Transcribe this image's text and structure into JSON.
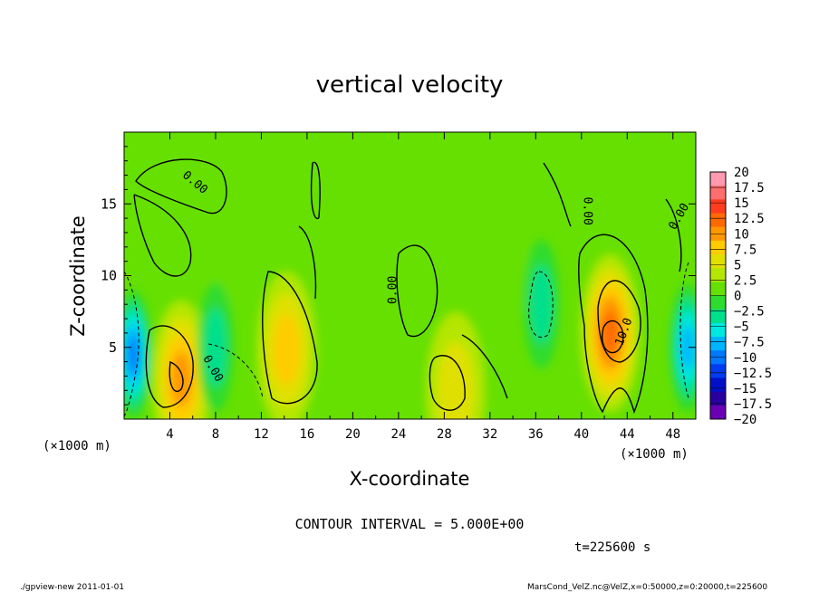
{
  "chart_data": {
    "type": "heatmap",
    "title": "vertical velocity",
    "xlabel": "X-coordinate",
    "ylabel": "Z-coordinate",
    "x_unit_label": "(×1000 m)",
    "y_unit_label": "(×1000 m)",
    "xlim": [
      0,
      50
    ],
    "ylim": [
      0,
      20
    ],
    "x_ticks": [
      4,
      8,
      12,
      16,
      20,
      24,
      28,
      32,
      36,
      40,
      44,
      48
    ],
    "y_ticks": [
      5,
      10,
      15
    ],
    "colorbar": {
      "levels": [
        "20",
        "17.5",
        "15",
        "12.5",
        "10",
        "7.5",
        "5",
        "2.5",
        "0",
        "−2.5",
        "−5",
        "−7.5",
        "−10",
        "−12.5",
        "−15",
        "−17.5",
        "−20"
      ],
      "colors": [
        "#ff9ab0",
        "#ff6e6e",
        "#ff3c1e",
        "#ff6a00",
        "#ff9800",
        "#ffcc00",
        "#e0e000",
        "#b4e600",
        "#66e000",
        "#2edc2e",
        "#00e08c",
        "#00e8e0",
        "#00b4ff",
        "#0078ff",
        "#003cf0",
        "#0010c8",
        "#2800a0",
        "#6a00b4"
      ]
    },
    "features": [
      {
        "kind": "updraft",
        "x": 42.5,
        "z": 6.0,
        "peak": 12.5
      },
      {
        "kind": "updraft",
        "x": 5.0,
        "z": 2.8,
        "peak": 10
      },
      {
        "kind": "updraft",
        "x": 14.2,
        "z": 4.8,
        "peak": 7.5
      },
      {
        "kind": "updraft",
        "x": 29.0,
        "z": 2.0,
        "peak": 5
      },
      {
        "kind": "downdraft",
        "x": 0.8,
        "z": 4.5,
        "peak": -12.5
      },
      {
        "kind": "downdraft",
        "x": 49.3,
        "z": 5.0,
        "peak": -10
      },
      {
        "kind": "downdraft",
        "x": 36.5,
        "z": 8.0,
        "peak": -5
      },
      {
        "kind": "downdraft",
        "x": 8.0,
        "z": 5.0,
        "peak": -5
      }
    ],
    "contour_labels": [
      "0.00",
      "0.00",
      "0.00",
      "0.00",
      "0.00",
      "10.0"
    ],
    "contour_interval_text": "CONTOUR INTERVAL = 5.000E+00",
    "time_text": "t=225600 s"
  },
  "footer": {
    "left": "./gpview-new  2011-01-01",
    "right": "MarsCond_VelZ.nc@VelZ,x=0:50000,z=0:20000,t=225600"
  }
}
